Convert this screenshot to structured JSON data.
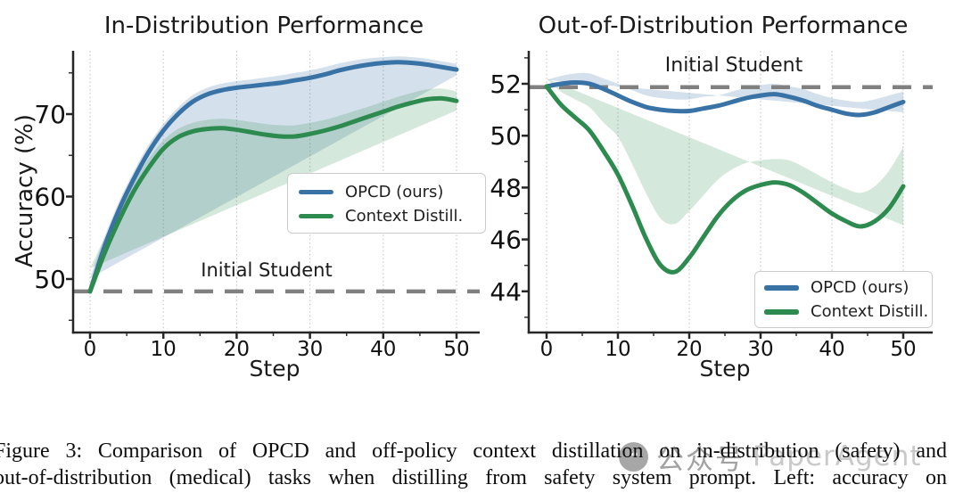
{
  "figure": {
    "caption_line1": "Figure 3: Comparison of OPCD and off-policy context distillation on in-distribution (safety) and",
    "caption_line2": "out-of-distribution (medical) tasks when distilling from safety system prompt. Left: accuracy on"
  },
  "watermark": {
    "icon": "speech-quote-icon",
    "account_label": "公众号",
    "name": "PaperAgent"
  },
  "colors": {
    "opcd_line": "#3973a6",
    "context_line": "#2e8b50",
    "opcd_band": "rgba(57,115,166,0.22)",
    "context_band": "rgba(46,139,80,0.20)",
    "reference": "#808080",
    "gridline": "#c9c9c9",
    "spine": "#262626"
  },
  "chart_data": [
    {
      "type": "line",
      "title": "In-Distribution Performance",
      "xlabel": "Step",
      "ylabel": "Accuracy (%)",
      "xticks": [
        0,
        10,
        20,
        30,
        40,
        50
      ],
      "yticks": [
        50,
        60,
        70
      ],
      "minor_xticks": [
        5,
        15,
        25,
        35,
        45
      ],
      "minor_yticks": [
        45,
        55,
        65,
        75
      ],
      "xlim": [
        -2.5,
        53
      ],
      "ylim": [
        43.5,
        77.7
      ],
      "grid": "vertical-dotted",
      "legend_position": "center-right",
      "reference": {
        "label": "Initial Student",
        "value": 48.5
      },
      "x": [
        0,
        2,
        4,
        6,
        8,
        10,
        12,
        14,
        16,
        18,
        20,
        22,
        24,
        26,
        28,
        30,
        32,
        34,
        36,
        38,
        40,
        42,
        44,
        46,
        48,
        50
      ],
      "series": [
        {
          "name": "OPCD (ours)",
          "color": "#3973a6",
          "band_color": "rgba(57,115,166,0.22)",
          "y": [
            48.5,
            54.0,
            58.5,
            62.2,
            65.4,
            68.0,
            70.0,
            71.5,
            72.4,
            72.9,
            73.2,
            73.4,
            73.6,
            73.8,
            74.1,
            74.4,
            74.8,
            75.3,
            75.7,
            76.0,
            76.2,
            76.3,
            76.2,
            76.0,
            75.7,
            75.4
          ],
          "band": [
            1.6,
            1.2,
            1.0,
            0.9,
            0.9,
            0.8,
            0.8,
            0.8,
            0.8,
            0.8,
            0.8,
            0.8,
            0.85,
            0.9,
            0.9,
            0.9,
            0.9,
            0.85,
            0.8,
            0.75,
            0.7,
            0.7,
            0.7,
            0.7,
            0.7,
            0.7
          ]
        },
        {
          "name": "Context Distill.",
          "color": "#2e8b50",
          "band_color": "rgba(46,139,80,0.20)",
          "y": [
            48.5,
            53.2,
            57.2,
            60.7,
            63.5,
            65.8,
            67.2,
            67.9,
            68.2,
            68.3,
            68.1,
            67.8,
            67.5,
            67.3,
            67.3,
            67.6,
            68.0,
            68.5,
            69.1,
            69.7,
            70.3,
            70.9,
            71.4,
            71.8,
            71.9,
            71.6
          ],
          "band": [
            2.8,
            1.8,
            1.4,
            1.2,
            1.1,
            1.0,
            1.0,
            1.05,
            1.1,
            1.15,
            1.2,
            1.25,
            1.3,
            1.35,
            1.35,
            1.35,
            1.3,
            1.3,
            1.25,
            1.2,
            1.2,
            1.2,
            1.2,
            1.2,
            1.2,
            1.15
          ]
        }
      ]
    },
    {
      "type": "line",
      "title": "Out-of-Distribution Performance",
      "xlabel": "Step",
      "ylabel": "",
      "xticks": [
        0,
        10,
        20,
        30,
        40,
        50
      ],
      "yticks": [
        44,
        46,
        48,
        50,
        52
      ],
      "minor_xticks": [
        5,
        15,
        25,
        35,
        45
      ],
      "minor_yticks": [
        43,
        45,
        47,
        49,
        51,
        53
      ],
      "xlim": [
        -2.5,
        54
      ],
      "ylim": [
        42.4,
        53.3
      ],
      "grid": "vertical-dotted",
      "legend_position": "lower-right",
      "reference": {
        "label": "Initial Student",
        "value": 51.87
      },
      "x": [
        0,
        2,
        4,
        6,
        8,
        10,
        12,
        14,
        16,
        18,
        20,
        22,
        24,
        26,
        28,
        30,
        32,
        34,
        36,
        38,
        40,
        42,
        44,
        46,
        48,
        50
      ],
      "series": [
        {
          "name": "OPCD (ours)",
          "color": "#3973a6",
          "band_color": "rgba(57,115,166,0.22)",
          "y": [
            51.9,
            52.0,
            52.05,
            52.0,
            51.8,
            51.55,
            51.3,
            51.1,
            51.0,
            50.95,
            50.95,
            51.05,
            51.15,
            51.3,
            51.45,
            51.55,
            51.6,
            51.5,
            51.35,
            51.15,
            51.0,
            50.85,
            50.8,
            50.9,
            51.1,
            51.3
          ],
          "band": [
            0.25,
            0.3,
            0.35,
            0.4,
            0.4,
            0.45,
            0.45,
            0.45,
            0.45,
            0.45,
            0.45,
            0.45,
            0.4,
            0.4,
            0.4,
            0.4,
            0.4,
            0.4,
            0.45,
            0.45,
            0.45,
            0.5,
            0.5,
            0.5,
            0.45,
            0.4
          ]
        },
        {
          "name": "Context Distill.",
          "color": "#2e8b50",
          "band_color": "rgba(46,139,80,0.20)",
          "y": [
            51.9,
            51.2,
            50.7,
            50.2,
            49.4,
            48.5,
            47.3,
            46.0,
            45.0,
            44.75,
            45.3,
            46.1,
            46.9,
            47.5,
            47.9,
            48.1,
            48.2,
            48.1,
            47.8,
            47.4,
            47.0,
            46.7,
            46.5,
            46.7,
            47.2,
            48.05
          ],
          "band": [
            0.3,
            0.5,
            0.7,
            0.9,
            1.1,
            1.45,
            1.6,
            1.75,
            1.8,
            1.85,
            1.8,
            1.6,
            1.4,
            1.2,
            1.05,
            0.95,
            0.9,
            0.95,
            1.0,
            1.1,
            1.2,
            1.25,
            1.3,
            1.35,
            1.45,
            1.5
          ]
        }
      ]
    }
  ]
}
